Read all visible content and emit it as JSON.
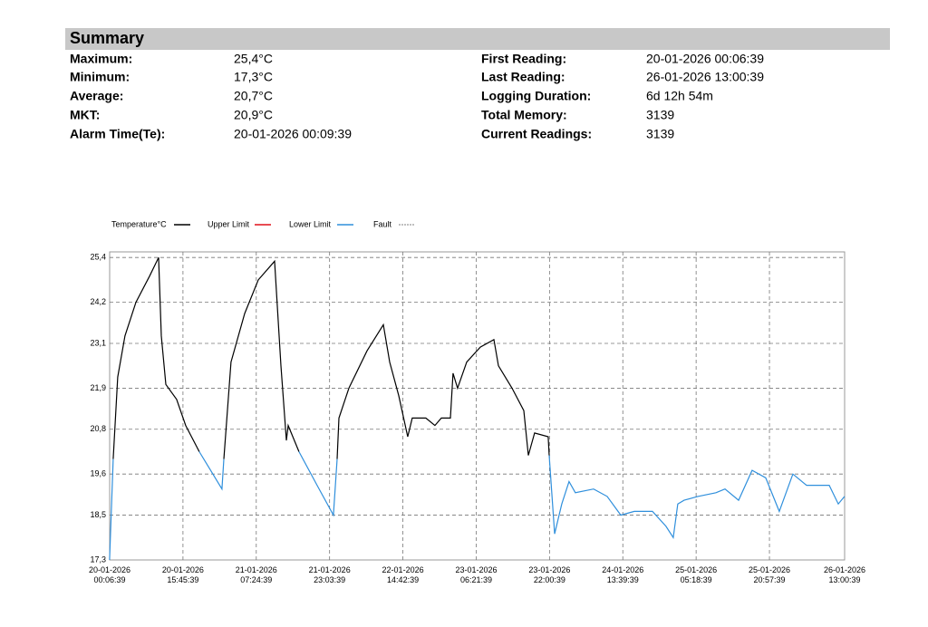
{
  "summary": {
    "title": "Summary",
    "left": [
      [
        "Maximum:",
        "25,4°C"
      ],
      [
        "Minimum:",
        "17,3°C"
      ],
      [
        "Average:",
        "20,7°C"
      ],
      [
        "MKT:",
        "20,9°C"
      ],
      [
        "Alarm Time(Te):",
        "20-01-2026 00:09:39"
      ]
    ],
    "right": [
      [
        "First Reading:",
        "20-01-2026 00:06:39"
      ],
      [
        "Last Reading:",
        "26-01-2026 13:00:39"
      ],
      [
        "Logging Duration:",
        "6d 12h 54m"
      ],
      [
        "Total Memory:",
        "3139"
      ],
      [
        "Current Readings:",
        "3139"
      ]
    ]
  },
  "chart_data": {
    "type": "line",
    "x": [
      "20-01-2026 00:06",
      "20-01-2026 00:52",
      "20-01-2026 01:50",
      "20-01-2026 03:23",
      "20-01-2026 05:43",
      "20-01-2026 08:37",
      "20-01-2026 10:33",
      "20-01-2026 11:08",
      "20-01-2026 12:06",
      "20-01-2026 14:25",
      "20-01-2026 16:21",
      "20-01-2026 19:15",
      "20-01-2026 22:09",
      "21-01-2026 00:05",
      "21-01-2026 00:29",
      "21-01-2026 02:01",
      "21-01-2026 04:56",
      "21-01-2026 07:50",
      "21-01-2026 11:19",
      "21-01-2026 12:40",
      "21-01-2026 13:50",
      "21-01-2026 14:13",
      "21-01-2026 16:32",
      "21-01-2026 20:24",
      "21-01-2026 23:53",
      "22-01-2026 00:40",
      "22-01-2026 01:03",
      "22-01-2026 03:11",
      "22-01-2026 07:03",
      "22-01-2026 10:32",
      "22-01-2026 11:53",
      "22-01-2026 13:49",
      "22-01-2026 15:45",
      "22-01-2026 16:43",
      "22-01-2026 19:37",
      "22-01-2026 21:33",
      "22-01-2026 22:55",
      "23-01-2026 00:51",
      "23-01-2026 01:25",
      "23-01-2026 02:23",
      "23-01-2026 04:20",
      "23-01-2026 07:14",
      "23-01-2026 10:08",
      "23-01-2026 11:06",
      "23-01-2026 14:00",
      "23-01-2026 16:31",
      "23-01-2026 17:29",
      "23-01-2026 18:50",
      "23-01-2026 21:44",
      "23-01-2026 21:56",
      "23-01-2026 23:06",
      "24-01-2026 00:38",
      "24-01-2026 02:11",
      "24-01-2026 03:32",
      "24-01-2026 07:25",
      "24-01-2026 10:19",
      "24-01-2026 13:13",
      "24-01-2026 16:07",
      "24-01-2026 19:59",
      "24-01-2026 22:53",
      "25-01-2026 00:26",
      "25-01-2026 01:24",
      "25-01-2026 02:45",
      "25-01-2026 05:40",
      "25-01-2026 09:32",
      "25-01-2026 11:28",
      "25-01-2026 14:22",
      "25-01-2026 17:16",
      "25-01-2026 20:10",
      "25-01-2026 23:04",
      "26-01-2026 01:58",
      "26-01-2026 04:53",
      "26-01-2026 09:43",
      "26-01-2026 11:39",
      "26-01-2026 13:00"
    ],
    "series": [
      {
        "name": "Temperature°C",
        "color": "#000000",
        "values": [
          null,
          20.0,
          22.2,
          23.3,
          24.2,
          24.9,
          25.4,
          23.3,
          22.0,
          21.6,
          20.9,
          20.2,
          null,
          null,
          20.0,
          22.6,
          23.9,
          24.8,
          25.3,
          22.5,
          20.5,
          20.9,
          20.2,
          null,
          null,
          20.0,
          21.1,
          21.9,
          22.9,
          23.6,
          22.6,
          21.7,
          20.6,
          21.1,
          21.1,
          20.9,
          21.1,
          21.1,
          22.3,
          21.9,
          22.6,
          23.0,
          23.2,
          22.5,
          21.9,
          21.3,
          20.1,
          20.7,
          20.6,
          20.1,
          null,
          null,
          null,
          null,
          null,
          null,
          null,
          null,
          null,
          null,
          null,
          null,
          null,
          null,
          null,
          null,
          null,
          null,
          null,
          null,
          null,
          null,
          null,
          null,
          null
        ]
      },
      {
        "name": "Upper Limit",
        "color": "#e0101a"
      },
      {
        "name": "Lower Limit",
        "color": "#2f8fdc",
        "values": [
          17.3,
          20.0,
          null,
          null,
          null,
          null,
          null,
          null,
          null,
          null,
          null,
          20.2,
          19.6,
          19.2,
          20.0,
          null,
          null,
          null,
          null,
          null,
          null,
          null,
          20.2,
          19.3,
          18.5,
          20.0,
          null,
          null,
          null,
          null,
          null,
          null,
          null,
          null,
          null,
          null,
          null,
          null,
          null,
          null,
          null,
          null,
          null,
          null,
          null,
          null,
          null,
          null,
          null,
          20.1,
          18.0,
          18.8,
          19.4,
          19.1,
          19.2,
          19.0,
          18.5,
          18.6,
          18.6,
          18.2,
          17.9,
          18.8,
          18.9,
          19.0,
          19.1,
          19.2,
          18.9,
          19.7,
          19.5,
          18.6,
          19.6,
          19.3,
          19.3,
          18.8,
          19.0
        ]
      },
      {
        "name": "Fault",
        "color": "#aaaaaa",
        "dash": "2 1"
      }
    ],
    "xlim": [
      "20-01-2026 00:06:39",
      "26-01-2026 13:00:39"
    ],
    "xticks": [
      "20-01-2026 00:06:39",
      "20-01-2026 15:45:39",
      "21-01-2026 07:24:39",
      "21-01-2026 23:03:39",
      "22-01-2026 14:42:39",
      "23-01-2026 06:21:39",
      "23-01-2026 22:00:39",
      "24-01-2026 13:39:39",
      "25-01-2026 05:18:39",
      "25-01-2026 20:57:39",
      "26-01-2026 13:00:39"
    ],
    "ylim": [
      17.3,
      25.55
    ],
    "yticks": [
      {
        "value": 17.3,
        "label": "17,3"
      },
      {
        "value": 18.5,
        "label": "18,5"
      },
      {
        "value": 19.6,
        "label": "19,6"
      },
      {
        "value": 20.8,
        "label": "20,8"
      },
      {
        "value": 21.9,
        "label": "21,9"
      },
      {
        "value": 23.1,
        "label": "23,1"
      },
      {
        "value": 24.2,
        "label": "24,2"
      },
      {
        "value": 25.4,
        "label": "25,4"
      }
    ],
    "grid": true
  }
}
